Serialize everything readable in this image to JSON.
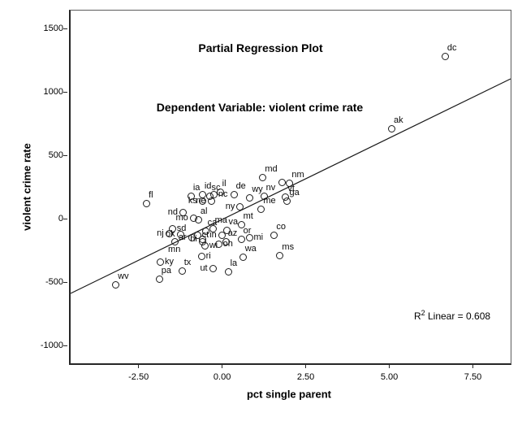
{
  "chart_data": {
    "type": "scatter",
    "title": "Partial Regression Plot",
    "subtitle": "Dependent Variable: violent crime rate",
    "xlabel": "pct single parent",
    "ylabel": "violent crime rate",
    "xlim": [
      -4.58,
      8.58
    ],
    "ylim": [
      -1131,
      1649
    ],
    "grid": false,
    "legend": "none",
    "x_ticks": [
      {
        "v": -2.5,
        "label": "-2.50"
      },
      {
        "v": 0.0,
        "label": "0.00"
      },
      {
        "v": 2.5,
        "label": "2.50"
      },
      {
        "v": 5.0,
        "label": "5.00"
      },
      {
        "v": 7.5,
        "label": "7.50"
      }
    ],
    "y_ticks": [
      {
        "v": 1500,
        "label": "1500"
      },
      {
        "v": 1000,
        "label": "1000"
      },
      {
        "v": 500,
        "label": "500"
      },
      {
        "v": 0,
        "label": "0"
      },
      {
        "v": -500,
        "label": "-500"
      },
      {
        "v": -1000,
        "label": "-1000"
      }
    ],
    "regression_line": {
      "x1": -4.58,
      "y1": -580,
      "x2": 8.58,
      "y2": 1111,
      "r2": 0.608
    },
    "annotation": {
      "prefix": "R",
      "sup": "2",
      "rest": " Linear = 0.608"
    },
    "marker": {
      "shape": "open-circle",
      "color": "#1c1c1c"
    },
    "points": [
      {
        "label": "dc",
        "x": 6.61,
        "y": 1292,
        "lp": "tr"
      },
      {
        "label": "ak",
        "x": 5.01,
        "y": 719,
        "lp": "tr"
      },
      {
        "label": "md",
        "x": 1.16,
        "y": 336,
        "lp": "tr"
      },
      {
        "label": "nm",
        "x": 1.96,
        "y": 292,
        "lp": "tr"
      },
      {
        "label": "",
        "x": 1.74,
        "y": 298,
        "lp": ""
      },
      {
        "label": "vt",
        "x": 1.84,
        "y": 183,
        "lp": "tr"
      },
      {
        "label": "ga",
        "x": 1.89,
        "y": 152,
        "lp": "tr"
      },
      {
        "label": "nv",
        "x": 1.19,
        "y": 190,
        "lp": "tr"
      },
      {
        "label": "wy",
        "x": 0.77,
        "y": 177,
        "lp": "tr"
      },
      {
        "label": "me",
        "x": 1.11,
        "y": 88,
        "lp": "tr"
      },
      {
        "label": "de",
        "x": 0.29,
        "y": 203,
        "lp": "tr"
      },
      {
        "label": "il",
        "x": -0.12,
        "y": 220,
        "lp": "tr"
      },
      {
        "label": "sc",
        "x": -0.44,
        "y": 190,
        "lp": "tr"
      },
      {
        "label": "nc",
        "x": -0.31,
        "y": 203,
        "lp": "r"
      },
      {
        "label": "id",
        "x": -0.65,
        "y": 203,
        "lp": "tr"
      },
      {
        "label": "ia",
        "x": -0.99,
        "y": 190,
        "lp": "tr"
      },
      {
        "label": "ks",
        "x": -0.65,
        "y": 152,
        "lp": "l"
      },
      {
        "label": "ne",
        "x": -0.39,
        "y": 152,
        "lp": "l"
      },
      {
        "label": "fl",
        "x": -2.32,
        "y": 132,
        "lp": "tr"
      },
      {
        "label": "ny",
        "x": 0.48,
        "y": 107,
        "lp": "l"
      },
      {
        "label": "nd",
        "x": -1.23,
        "y": 62,
        "lp": "l"
      },
      {
        "label": "mo",
        "x": -0.92,
        "y": 18,
        "lp": "l"
      },
      {
        "label": "al",
        "x": -0.77,
        "y": 5,
        "lp": "tr"
      },
      {
        "label": "mt",
        "x": 0.51,
        "y": -33,
        "lp": "tr"
      },
      {
        "label": "ma",
        "x": -0.34,
        "y": -65,
        "lp": "tr"
      },
      {
        "label": "va",
        "x": 0.07,
        "y": -78,
        "lp": "tr"
      },
      {
        "label": "ca",
        "x": -0.56,
        "y": -90,
        "lp": "tr"
      },
      {
        "label": "sd",
        "x": -1.55,
        "y": -65,
        "lp": "r"
      },
      {
        "label": "co",
        "x": 1.5,
        "y": -116,
        "lp": "tr"
      },
      {
        "label": "nj",
        "x": -1.65,
        "y": -103,
        "lp": "l"
      },
      {
        "label": "ok",
        "x": -1.31,
        "y": -110,
        "lp": "l"
      },
      {
        "label": "ct",
        "x": -0.8,
        "y": -116,
        "lp": "r"
      },
      {
        "label": "in",
        "x": -0.07,
        "y": -122,
        "lp": "l"
      },
      {
        "label": "az",
        "x": 0.05,
        "y": -167,
        "lp": "tr"
      },
      {
        "label": "",
        "x": -0.65,
        "y": -167,
        "lp": ""
      },
      {
        "label": "ar",
        "x": -0.97,
        "y": -141,
        "lp": "l"
      },
      {
        "label": "hi",
        "x": -0.65,
        "y": -154,
        "lp": "l"
      },
      {
        "label": "mi",
        "x": 0.75,
        "y": -135,
        "lp": "r"
      },
      {
        "label": "or",
        "x": 0.51,
        "y": -148,
        "lp": "tr"
      },
      {
        "label": "wi",
        "x": -0.58,
        "y": -205,
        "lp": "r"
      },
      {
        "label": "oh",
        "x": -0.17,
        "y": -192,
        "lp": "r"
      },
      {
        "label": "mn",
        "x": -1.48,
        "y": -167,
        "lp": "b"
      },
      {
        "label": "wa",
        "x": 0.56,
        "y": -294,
        "lp": "tr"
      },
      {
        "label": "ms",
        "x": 1.67,
        "y": -282,
        "lp": "tr"
      },
      {
        "label": "ri",
        "x": -0.68,
        "y": -288,
        "lp": "r"
      },
      {
        "label": "ky",
        "x": -1.91,
        "y": -333,
        "lp": "r"
      },
      {
        "label": "tx",
        "x": -1.26,
        "y": -403,
        "lp": "tr"
      },
      {
        "label": "ut",
        "x": -0.34,
        "y": -383,
        "lp": "l"
      },
      {
        "label": "la",
        "x": 0.12,
        "y": -409,
        "lp": "tr"
      },
      {
        "label": "pa",
        "x": -1.94,
        "y": -466,
        "lp": "tr"
      },
      {
        "label": "wv",
        "x": -3.24,
        "y": -511,
        "lp": "tr"
      }
    ]
  }
}
